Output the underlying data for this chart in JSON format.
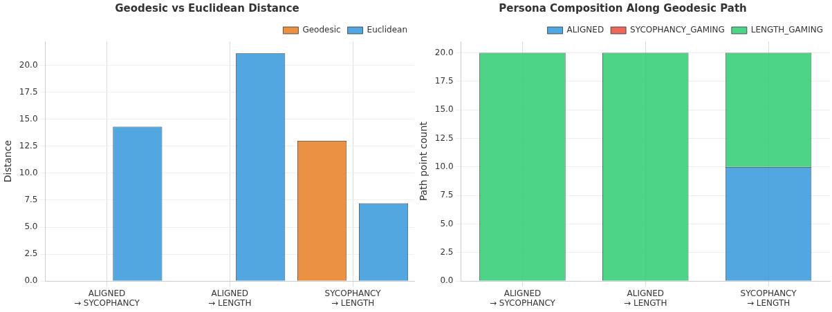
{
  "chart_data": [
    {
      "type": "bar",
      "title": "Geodesic vs Euclidean Distance",
      "ylabel": "Distance",
      "categories": [
        "ALIGNED\n→ SYCOPHANCY",
        "ALIGNED\n→ LENGTH",
        "SYCOPHANCY\n→ LENGTH"
      ],
      "series": [
        {
          "name": "Geodesic",
          "color": "#e67e22",
          "values": [
            0,
            0,
            13.0
          ]
        },
        {
          "name": "Euclidean",
          "color": "#3498db",
          "values": [
            14.3,
            21.1,
            7.2
          ]
        }
      ],
      "ylim": [
        0,
        22.2
      ],
      "yticks": [
        {
          "value": 0,
          "label": "0.0"
        },
        {
          "value": 2.5,
          "label": "2.5"
        },
        {
          "value": 5,
          "label": "5.0"
        },
        {
          "value": 7.5,
          "label": "7.5"
        },
        {
          "value": 10,
          "label": "10.0"
        },
        {
          "value": 12.5,
          "label": "12.5"
        },
        {
          "value": 15,
          "label": "15.0"
        },
        {
          "value": 17.5,
          "label": "17.5"
        },
        {
          "value": 20,
          "label": "20.0"
        }
      ],
      "grid": true,
      "legend": "top right"
    },
    {
      "type": "bar",
      "title": "Persona Composition Along Geodesic Path",
      "ylabel": "Path point count",
      "categories": [
        "ALIGNED\n→ SYCOPHANCY",
        "ALIGNED\n→ LENGTH",
        "SYCOPHANCY\n→ LENGTH"
      ],
      "stacked": true,
      "series": [
        {
          "name": "ALIGNED",
          "color": "#3498db",
          "values": [
            0,
            0,
            10
          ]
        },
        {
          "name": "SYCOPHANCY_GAMING",
          "color": "#e74c3c",
          "values": [
            0,
            0,
            0
          ]
        },
        {
          "name": "LENGTH_GAMING",
          "color": "#2ecc71",
          "values": [
            20,
            20,
            10
          ]
        }
      ],
      "ylim": [
        0,
        21.0
      ],
      "yticks": [
        {
          "value": 0,
          "label": "0.0"
        },
        {
          "value": 2.5,
          "label": "2.5"
        },
        {
          "value": 5,
          "label": "5.0"
        },
        {
          "value": 7.5,
          "label": "7.5"
        },
        {
          "value": 10,
          "label": "10.0"
        },
        {
          "value": 12.5,
          "label": "12.5"
        },
        {
          "value": 15,
          "label": "15.0"
        },
        {
          "value": 17.5,
          "label": "17.5"
        },
        {
          "value": 20,
          "label": "20.0"
        }
      ],
      "grid": true,
      "legend": "top right"
    }
  ]
}
